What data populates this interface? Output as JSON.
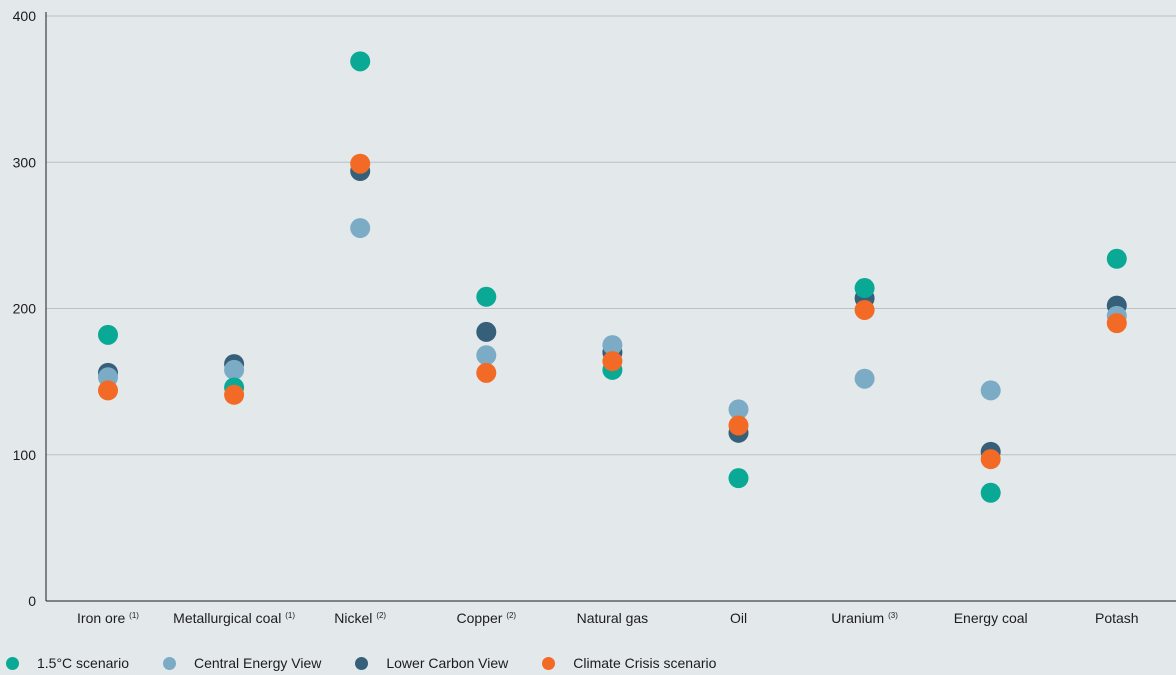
{
  "chart_data": {
    "type": "scatter",
    "categories": [
      {
        "label": "Iron ore",
        "note": "(1)"
      },
      {
        "label": "Metallurgical coal",
        "note": "(1)"
      },
      {
        "label": "Nickel",
        "note": "(2)"
      },
      {
        "label": "Copper",
        "note": "(2)"
      },
      {
        "label": "Natural gas",
        "note": ""
      },
      {
        "label": "Oil",
        "note": ""
      },
      {
        "label": "Uranium",
        "note": "(3)"
      },
      {
        "label": "Energy coal",
        "note": ""
      },
      {
        "label": "Potash",
        "note": ""
      }
    ],
    "series": [
      {
        "name": "1.5°C scenario",
        "color": "#0aa996",
        "values": [
          182,
          146,
          369,
          208,
          158,
          84,
          214,
          74,
          234
        ]
      },
      {
        "name": "Central Energy View",
        "color": "#7cabc6",
        "values": [
          153,
          158,
          255,
          168,
          175,
          131,
          152,
          144,
          195
        ]
      },
      {
        "name": "Lower Carbon View",
        "color": "#36607a",
        "values": [
          156,
          162,
          294,
          184,
          170,
          115,
          207,
          102,
          202
        ]
      },
      {
        "name": "Climate Crisis scenario",
        "color": "#f26a25",
        "values": [
          144,
          141,
          299,
          156,
          164,
          120,
          199,
          97,
          190
        ]
      }
    ],
    "draw_order": [
      2,
      1,
      0,
      3
    ],
    "ylim": [
      0,
      400
    ],
    "yticks": [
      0,
      100,
      200,
      300,
      400
    ],
    "grid": true,
    "legend_position": "bottom-left",
    "xlabel": "",
    "ylabel": "",
    "title": ""
  }
}
